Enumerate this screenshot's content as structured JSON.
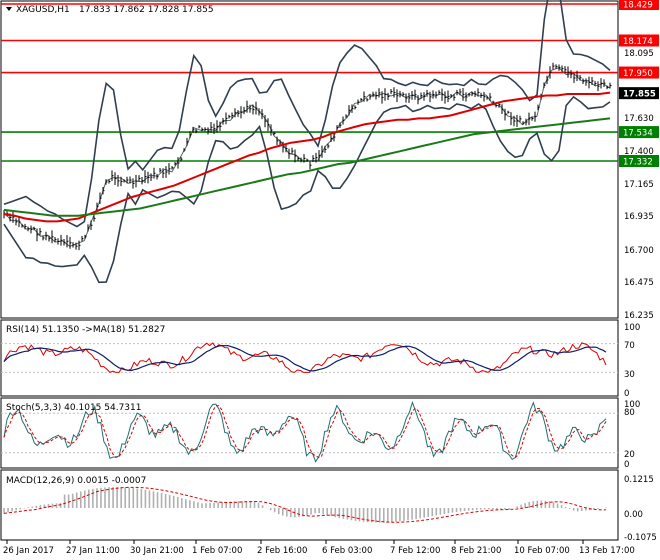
{
  "header": {
    "symbol": "XAGUSD,H1",
    "ohlc": "17.833 17.862 17.828 17.855"
  },
  "price_axis": {
    "ticks": [
      "18.429",
      "18.174",
      "18.095",
      "17.950",
      "17.855",
      "17.630",
      "17.534",
      "17.400",
      "17.332",
      "17.165",
      "16.935",
      "16.700",
      "16.475",
      "16.235"
    ]
  },
  "levels": [
    {
      "label": "18.429",
      "value": 18.429,
      "color": "#ff0000"
    },
    {
      "label": "18.174",
      "value": 18.174,
      "color": "#ff0000"
    },
    {
      "label": "17.950",
      "value": 17.95,
      "color": "#ff0000"
    },
    {
      "label": "17.534",
      "value": 17.534,
      "color": "#008000"
    },
    {
      "label": "17.332",
      "value": 17.332,
      "color": "#008000"
    }
  ],
  "current_price": {
    "label": "17.855",
    "value": 17.855,
    "color": "#000000"
  },
  "rsi": {
    "title": "RSI(14) 51.1350 ->MA(18) 51.2827",
    "ticks": [
      "100",
      "70",
      "30",
      "0"
    ]
  },
  "stoch": {
    "title": "Stoch(5,3,3) 40.1015 54.7311",
    "ticks": [
      "100",
      "80",
      "20",
      "0"
    ]
  },
  "macd": {
    "title": "MACD(12,26,9) 0.0015 -0.0007",
    "ticks": [
      "0.1215",
      "0.00",
      "-0.1075"
    ]
  },
  "time_axis": {
    "labels": [
      "26 Jan 2017",
      "27 Jan 11:00",
      "30 Jan 21:00",
      "1 Feb 07:00",
      "2 Feb 16:00",
      "6 Feb 03:00",
      "7 Feb 12:00",
      "8 Feb 21:00",
      "10 Feb 07:00",
      "13 Feb 17:00"
    ]
  },
  "colors": {
    "price_line_red": "#ff0000",
    "support_green": "#008000",
    "ma_red": "#dd0000",
    "ma_green": "#1a7a1a",
    "bollinger": "#2f3f4f",
    "candle": "#000000",
    "rsi_line": "#0a1f6b",
    "rsi_ma": "#dd0000",
    "stoch_main": "#1f6f6f",
    "stoch_signal": "#dd0000",
    "macd_hist": "#b0b0b0",
    "macd_signal": "#dd0000"
  },
  "chart_data": [
    {
      "type": "line",
      "title": "XAGUSD,H1",
      "description_series": [
        "price",
        "MA red",
        "MA green"
      ],
      "ylim": [
        16.235,
        18.429
      ],
      "x_labels": [
        "26 Jan 2017",
        "27 Jan 11:00",
        "30 Jan 21:00",
        "1 Feb 07:00",
        "2 Feb 16:00",
        "6 Feb 03:00",
        "7 Feb 12:00",
        "8 Feb 21:00",
        "10 Feb 07:00",
        "13 Feb 17:00"
      ],
      "price_path": [
        16.96,
        16.93,
        16.9,
        16.87,
        16.85,
        16.82,
        16.8,
        16.78,
        16.76,
        16.75,
        16.74,
        16.79,
        16.9,
        17.05,
        17.18,
        17.23,
        17.2,
        17.19,
        17.18,
        17.2,
        17.22,
        17.24,
        17.26,
        17.27,
        17.33,
        17.45,
        17.55,
        17.56,
        17.54,
        17.56,
        17.6,
        17.63,
        17.66,
        17.69,
        17.71,
        17.69,
        17.6,
        17.52,
        17.45,
        17.4,
        17.36,
        17.34,
        17.32,
        17.35,
        17.42,
        17.5,
        17.58,
        17.65,
        17.72,
        17.76,
        17.78,
        17.8,
        17.79,
        17.8,
        17.79,
        17.79,
        17.78,
        17.78,
        17.79,
        17.8,
        17.79,
        17.78,
        17.8,
        17.79,
        17.8,
        17.8,
        17.78,
        17.74,
        17.7,
        17.66,
        17.62,
        17.6,
        17.62,
        17.66,
        17.85,
        17.98,
        17.97,
        17.95,
        17.93,
        17.91,
        17.88,
        17.87,
        17.86,
        17.855
      ],
      "ma_red": [
        16.96,
        16.95,
        16.93,
        16.92,
        16.91,
        16.91,
        16.92,
        16.93,
        16.96,
        16.99,
        17.02,
        17.05,
        17.08,
        17.1,
        17.12,
        17.14,
        17.16,
        17.19,
        17.22,
        17.25,
        17.28,
        17.31,
        17.34,
        17.37,
        17.39,
        17.42,
        17.44,
        17.46,
        17.47,
        17.48,
        17.5,
        17.53,
        17.55,
        17.57,
        17.59,
        17.6,
        17.61,
        17.62,
        17.62,
        17.63,
        17.63,
        17.64,
        17.65,
        17.67,
        17.69,
        17.71,
        17.73,
        17.75,
        17.76,
        17.77,
        17.78,
        17.79,
        17.79,
        17.8,
        17.8,
        17.8,
        17.8,
        17.81
      ],
      "ma_green": [
        16.99,
        16.98,
        16.97,
        16.96,
        16.95,
        16.95,
        16.95,
        16.96,
        16.97,
        16.98,
        16.99,
        17.0,
        17.02,
        17.04,
        17.06,
        17.08,
        17.1,
        17.12,
        17.14,
        17.16,
        17.18,
        17.2,
        17.22,
        17.24,
        17.25,
        17.27,
        17.29,
        17.31,
        17.32,
        17.34,
        17.36,
        17.38,
        17.4,
        17.42,
        17.44,
        17.46,
        17.48,
        17.5,
        17.52,
        17.53,
        17.54,
        17.55,
        17.56,
        17.57,
        17.58,
        17.59,
        17.6,
        17.61,
        17.62,
        17.63
      ]
    }
  ]
}
